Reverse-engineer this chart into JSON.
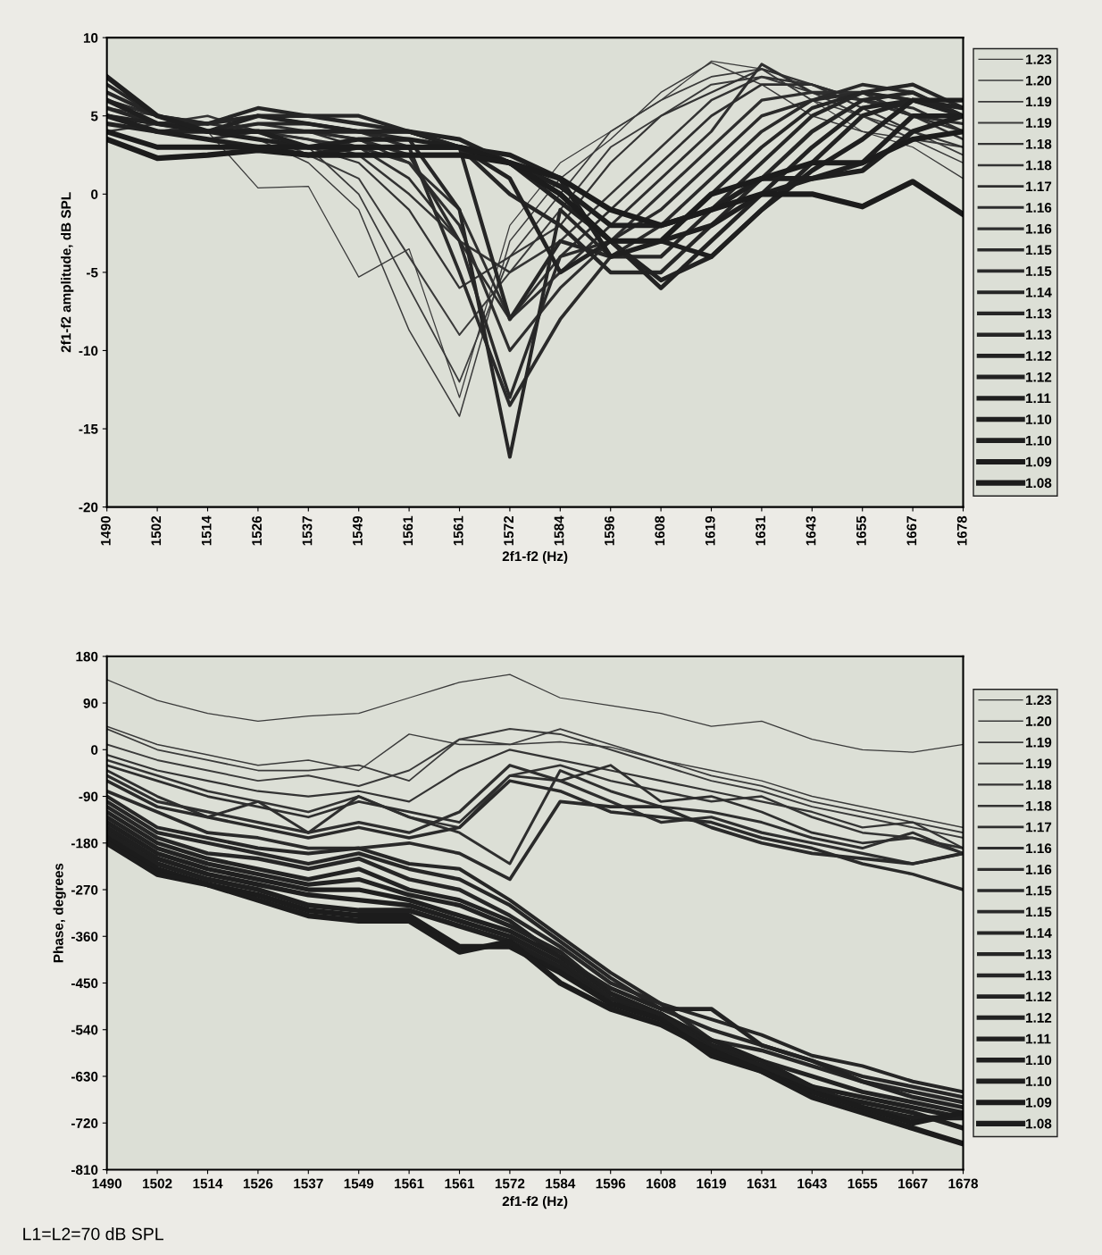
{
  "chart_data": [
    {
      "type": "line",
      "xlabel": "2f1-f2 (Hz)",
      "ylabel": "2f1-f2 amplitude, dB SPL",
      "ylim": [
        -20,
        10
      ],
      "yticks": [
        -20,
        -15,
        -10,
        -5,
        0,
        5,
        10
      ],
      "grid": false,
      "legend": "right",
      "marker": "none",
      "line_style": "solid",
      "categories": [
        "1490",
        "1502",
        "1514",
        "1526",
        "1537",
        "1549",
        "1561",
        "1561",
        "1572",
        "1584",
        "1596",
        "1608",
        "1619",
        "1631",
        "1643",
        "1655",
        "1667",
        "1678"
      ],
      "series": [
        {
          "name": "1.23",
          "color": "#3a3a3a",
          "values": [
            5,
            4.5,
            4,
            0.4,
            0.5,
            -5.3,
            -3.5,
            -13,
            -2,
            2,
            4,
            6,
            8.5,
            8,
            6,
            4,
            3,
            1
          ]
        },
        {
          "name": "1.20",
          "color": "#3a3a3a",
          "values": [
            5,
            4.5,
            4,
            3.5,
            2,
            -1,
            -8.7,
            -14.2,
            -3,
            1,
            3.5,
            6.5,
            8.4,
            7,
            5,
            4,
            3.5,
            2
          ]
        },
        {
          "name": "1.19",
          "color": "#3a3a3a",
          "values": [
            5.5,
            5,
            4.5,
            4,
            3,
            0,
            -6,
            -12,
            -4,
            0,
            4,
            6,
            7.5,
            8,
            6,
            5,
            4,
            2.5
          ]
        },
        {
          "name": "1.19",
          "color": "#3a3a3a",
          "values": [
            4.5,
            4,
            4.5,
            4,
            2.5,
            1,
            -4,
            -9,
            -5,
            -1,
            3,
            5,
            7,
            7.5,
            6.5,
            5,
            3.5,
            3
          ]
        },
        {
          "name": "1.18",
          "color": "#333333",
          "values": [
            5,
            4,
            4,
            3.5,
            3,
            2,
            -1,
            -6,
            -4,
            -2,
            2,
            5,
            6.5,
            8,
            7,
            5.5,
            4,
            3
          ]
        },
        {
          "name": "1.18",
          "color": "#333333",
          "values": [
            4,
            4.5,
            5,
            4,
            3.5,
            2.5,
            0,
            -3,
            -5,
            -3,
            0,
            3,
            6,
            7.5,
            7,
            6,
            5,
            3.5
          ]
        },
        {
          "name": "1.17",
          "color": "#2e2e2e",
          "values": [
            6,
            5,
            4.5,
            4,
            4,
            3,
            1,
            -3,
            -8,
            -4,
            -1,
            2,
            5,
            7,
            7,
            6,
            5,
            4
          ]
        },
        {
          "name": "1.16",
          "color": "#2e2e2e",
          "values": [
            5,
            4.5,
            4,
            4.5,
            4,
            3.5,
            2,
            -1,
            -8,
            -5,
            -2,
            1,
            4,
            8.3,
            6.5,
            6,
            5.5,
            4
          ]
        },
        {
          "name": "1.16",
          "color": "#2e2e2e",
          "values": [
            4.5,
            4,
            3.5,
            4,
            3.5,
            3,
            2,
            -2,
            -10,
            -6,
            -3,
            0,
            3,
            6,
            6.5,
            6.5,
            5,
            4.5
          ]
        },
        {
          "name": "1.15",
          "color": "#2a2a2a",
          "values": [
            5,
            4.5,
            4,
            4,
            4,
            3.5,
            2.5,
            -3,
            -13,
            -4,
            -3,
            -1,
            2,
            5,
            6,
            6.5,
            6,
            5
          ]
        },
        {
          "name": "1.15",
          "color": "#2a2a2a",
          "values": [
            6,
            5,
            4.5,
            5,
            4.5,
            4,
            3,
            -5,
            -13.5,
            -8,
            -4,
            -2,
            1,
            4,
            6,
            7,
            6.5,
            5
          ]
        },
        {
          "name": "1.14",
          "color": "#262626",
          "values": [
            7,
            5,
            4,
            4.5,
            4.5,
            4,
            3.5,
            -1,
            -16.8,
            -1,
            -4,
            -3,
            0,
            3,
            5.5,
            6.5,
            6,
            5.5
          ]
        },
        {
          "name": "1.13",
          "color": "#262626",
          "values": [
            6.5,
            5,
            4.5,
            5.5,
            5,
            5,
            4,
            3,
            -8,
            -3,
            -4,
            -4,
            -1,
            2,
            5,
            6.5,
            7,
            5.5
          ]
        },
        {
          "name": "1.13",
          "color": "#262626",
          "values": [
            5.5,
            4.5,
            4.5,
            5,
            5,
            4.5,
            4,
            3,
            0,
            -2,
            -5,
            -5,
            -2,
            1,
            4,
            6,
            6.5,
            5
          ]
        },
        {
          "name": "1.12",
          "color": "#222222",
          "values": [
            5,
            4.5,
            4,
            5,
            4.5,
            4,
            4,
            3,
            1,
            -5,
            -3,
            -6,
            -3,
            0,
            3,
            5.5,
            6,
            5
          ]
        },
        {
          "name": "1.12",
          "color": "#222222",
          "values": [
            4.5,
            4,
            4,
            4,
            4,
            4,
            4,
            3.5,
            2,
            -0.5,
            -3,
            -5.5,
            -4,
            -1,
            2,
            5,
            6,
            5.5
          ]
        },
        {
          "name": "1.11",
          "color": "#1f1f1f",
          "values": [
            6,
            4.5,
            4,
            3.5,
            3,
            3.5,
            3.5,
            3,
            2,
            0,
            -3,
            -3,
            -4,
            -1,
            1.5,
            3.5,
            6,
            6
          ]
        },
        {
          "name": "1.10",
          "color": "#1f1f1f",
          "values": [
            7.5,
            5,
            4,
            4,
            3,
            3,
            3,
            3,
            2.5,
            1,
            -4,
            -3,
            -2,
            0,
            1,
            2,
            5,
            5
          ]
        },
        {
          "name": "1.10",
          "color": "#1f1f1f",
          "values": [
            5,
            4,
            3.5,
            3,
            2.5,
            3,
            3,
            3,
            2,
            0.5,
            -2,
            -2,
            -1,
            1,
            1,
            1.5,
            4,
            5
          ]
        },
        {
          "name": "1.09",
          "color": "#1c1c1c",
          "values": [
            4,
            3,
            3,
            3,
            3,
            3,
            3,
            3,
            2,
            0,
            -3,
            -3,
            0,
            1,
            2,
            2,
            3.5,
            4
          ]
        },
        {
          "name": "1.08",
          "color": "#1c1c1c",
          "values": [
            3.5,
            2.3,
            2.5,
            2.8,
            2.5,
            2.5,
            2.5,
            2.5,
            2,
            1,
            -1,
            -2,
            -1,
            0,
            0,
            -0.8,
            0.8,
            -1.3
          ]
        }
      ]
    },
    {
      "type": "line",
      "xlabel": "2f1-f2 (Hz)",
      "ylabel": "Phase, degrees",
      "ylim": [
        -810,
        180
      ],
      "yticks": [
        -810,
        -720,
        -630,
        -540,
        -450,
        -360,
        -270,
        -180,
        -90,
        0,
        90,
        180
      ],
      "grid": false,
      "legend": "right",
      "marker": "none",
      "line_style": "solid",
      "categories": [
        "1490",
        "1502",
        "1514",
        "1526",
        "1537",
        "1549",
        "1561",
        "1561",
        "1572",
        "1584",
        "1596",
        "1608",
        "1619",
        "1631",
        "1643",
        "1655",
        "1667",
        "1678"
      ],
      "annotations": [
        "L1=L2=70 dB SPL"
      ],
      "series": [
        {
          "name": "1.23",
          "color": "#3a3a3a",
          "values": [
            135,
            95,
            70,
            55,
            65,
            70,
            100,
            130,
            145,
            100,
            85,
            70,
            45,
            55,
            20,
            0,
            -5,
            10
          ]
        },
        {
          "name": "1.20",
          "color": "#3a3a3a",
          "values": [
            45,
            10,
            -10,
            -30,
            -20,
            -40,
            30,
            10,
            10,
            15,
            5,
            -20,
            -40,
            -60,
            -90,
            -110,
            -130,
            -150
          ]
        },
        {
          "name": "1.19",
          "color": "#3a3a3a",
          "values": [
            40,
            0,
            -20,
            -40,
            -40,
            -30,
            -60,
            20,
            10,
            40,
            10,
            -20,
            -50,
            -70,
            -100,
            -120,
            -140,
            -160
          ]
        },
        {
          "name": "1.19",
          "color": "#3a3a3a",
          "values": [
            10,
            -20,
            -40,
            -60,
            -50,
            -70,
            -40,
            20,
            40,
            30,
            0,
            -30,
            -60,
            -80,
            -110,
            -130,
            -150,
            -170
          ]
        },
        {
          "name": "1.18",
          "color": "#333333",
          "values": [
            -10,
            -40,
            -60,
            -80,
            -90,
            -80,
            -100,
            -40,
            0,
            -20,
            -40,
            -60,
            -80,
            -100,
            -120,
            -150,
            -140,
            -190
          ]
        },
        {
          "name": "1.18",
          "color": "#333333",
          "values": [
            -20,
            -50,
            -80,
            -100,
            -120,
            -90,
            -130,
            -150,
            -50,
            -30,
            -60,
            -80,
            -100,
            -90,
            -130,
            -160,
            -170,
            -200
          ]
        },
        {
          "name": "1.17",
          "color": "#2e2e2e",
          "values": [
            -30,
            -60,
            -90,
            -110,
            -130,
            -100,
            -120,
            -140,
            -50,
            -60,
            -30,
            -100,
            -90,
            -120,
            -160,
            -180,
            -170,
            -190
          ]
        },
        {
          "name": "1.16",
          "color": "#2e2e2e",
          "values": [
            -40,
            -90,
            -130,
            -100,
            -160,
            -90,
            -130,
            -160,
            -220,
            -40,
            -80,
            -110,
            -120,
            -140,
            -170,
            -190,
            -160,
            -200
          ]
        },
        {
          "name": "1.16",
          "color": "#2e2e2e",
          "values": [
            -50,
            -100,
            -120,
            -140,
            -160,
            -140,
            -160,
            -120,
            -30,
            -60,
            -100,
            -140,
            -130,
            -160,
            -180,
            -200,
            -220,
            -200
          ]
        },
        {
          "name": "1.15",
          "color": "#2a2a2a",
          "values": [
            -60,
            -110,
            -130,
            -150,
            -170,
            -150,
            -170,
            -150,
            -60,
            -80,
            -120,
            -130,
            -140,
            -170,
            -190,
            -220,
            -240,
            -270
          ]
        },
        {
          "name": "1.15",
          "color": "#2a2a2a",
          "values": [
            -80,
            -120,
            -160,
            -170,
            -190,
            -190,
            -180,
            -200,
            -250,
            -100,
            -110,
            -110,
            -150,
            -180,
            -200,
            -210,
            -220,
            -200
          ]
        },
        {
          "name": "1.14",
          "color": "#262626",
          "values": [
            -90,
            -150,
            -170,
            -190,
            -200,
            -190,
            -220,
            -230,
            -290,
            -360,
            -430,
            -490,
            -520,
            -550,
            -590,
            -610,
            -640,
            -660
          ]
        },
        {
          "name": "1.13",
          "color": "#262626",
          "values": [
            -100,
            -160,
            -180,
            -200,
            -220,
            -200,
            -230,
            -250,
            -300,
            -370,
            -440,
            -500,
            -540,
            -570,
            -600,
            -630,
            -650,
            -670
          ]
        },
        {
          "name": "1.13",
          "color": "#262626",
          "values": [
            -110,
            -170,
            -200,
            -210,
            -230,
            -210,
            -250,
            -270,
            -320,
            -380,
            -450,
            -490,
            -560,
            -580,
            -610,
            -640,
            -660,
            -680
          ]
        },
        {
          "name": "1.12",
          "color": "#222222",
          "values": [
            -120,
            -180,
            -210,
            -230,
            -250,
            -230,
            -270,
            -290,
            -330,
            -400,
            -460,
            -500,
            -500,
            -570,
            -600,
            -640,
            -670,
            -690
          ]
        },
        {
          "name": "1.12",
          "color": "#222222",
          "values": [
            -130,
            -190,
            -220,
            -240,
            -260,
            -250,
            -280,
            -300,
            -340,
            -390,
            -470,
            -510,
            -570,
            -600,
            -630,
            -660,
            -680,
            -700
          ]
        },
        {
          "name": "1.11",
          "color": "#1f1f1f",
          "values": [
            -140,
            -200,
            -230,
            -250,
            -270,
            -270,
            -290,
            -320,
            -350,
            -400,
            -470,
            -510,
            -560,
            -600,
            -650,
            -670,
            -690,
            -710
          ]
        },
        {
          "name": "1.10",
          "color": "#1f1f1f",
          "values": [
            -150,
            -210,
            -240,
            -260,
            -280,
            -290,
            -300,
            -330,
            -360,
            -410,
            -480,
            -510,
            -570,
            -610,
            -660,
            -680,
            -700,
            -730
          ]
        },
        {
          "name": "1.10",
          "color": "#1f1f1f",
          "values": [
            -160,
            -220,
            -250,
            -270,
            -300,
            -310,
            -310,
            -340,
            -370,
            -420,
            -490,
            -510,
            -580,
            -610,
            -650,
            -690,
            -710,
            -710
          ]
        },
        {
          "name": "1.09",
          "color": "#1c1c1c",
          "values": [
            -170,
            -230,
            -260,
            -280,
            -310,
            -320,
            -320,
            -380,
            -380,
            -430,
            -490,
            -520,
            -590,
            -620,
            -660,
            -690,
            -720,
            -700
          ]
        },
        {
          "name": "1.08",
          "color": "#1c1c1c",
          "values": [
            -180,
            -240,
            -260,
            -290,
            -320,
            -330,
            -330,
            -390,
            -370,
            -450,
            -500,
            -530,
            -580,
            -620,
            -670,
            -700,
            -730,
            -760
          ]
        }
      ]
    }
  ]
}
